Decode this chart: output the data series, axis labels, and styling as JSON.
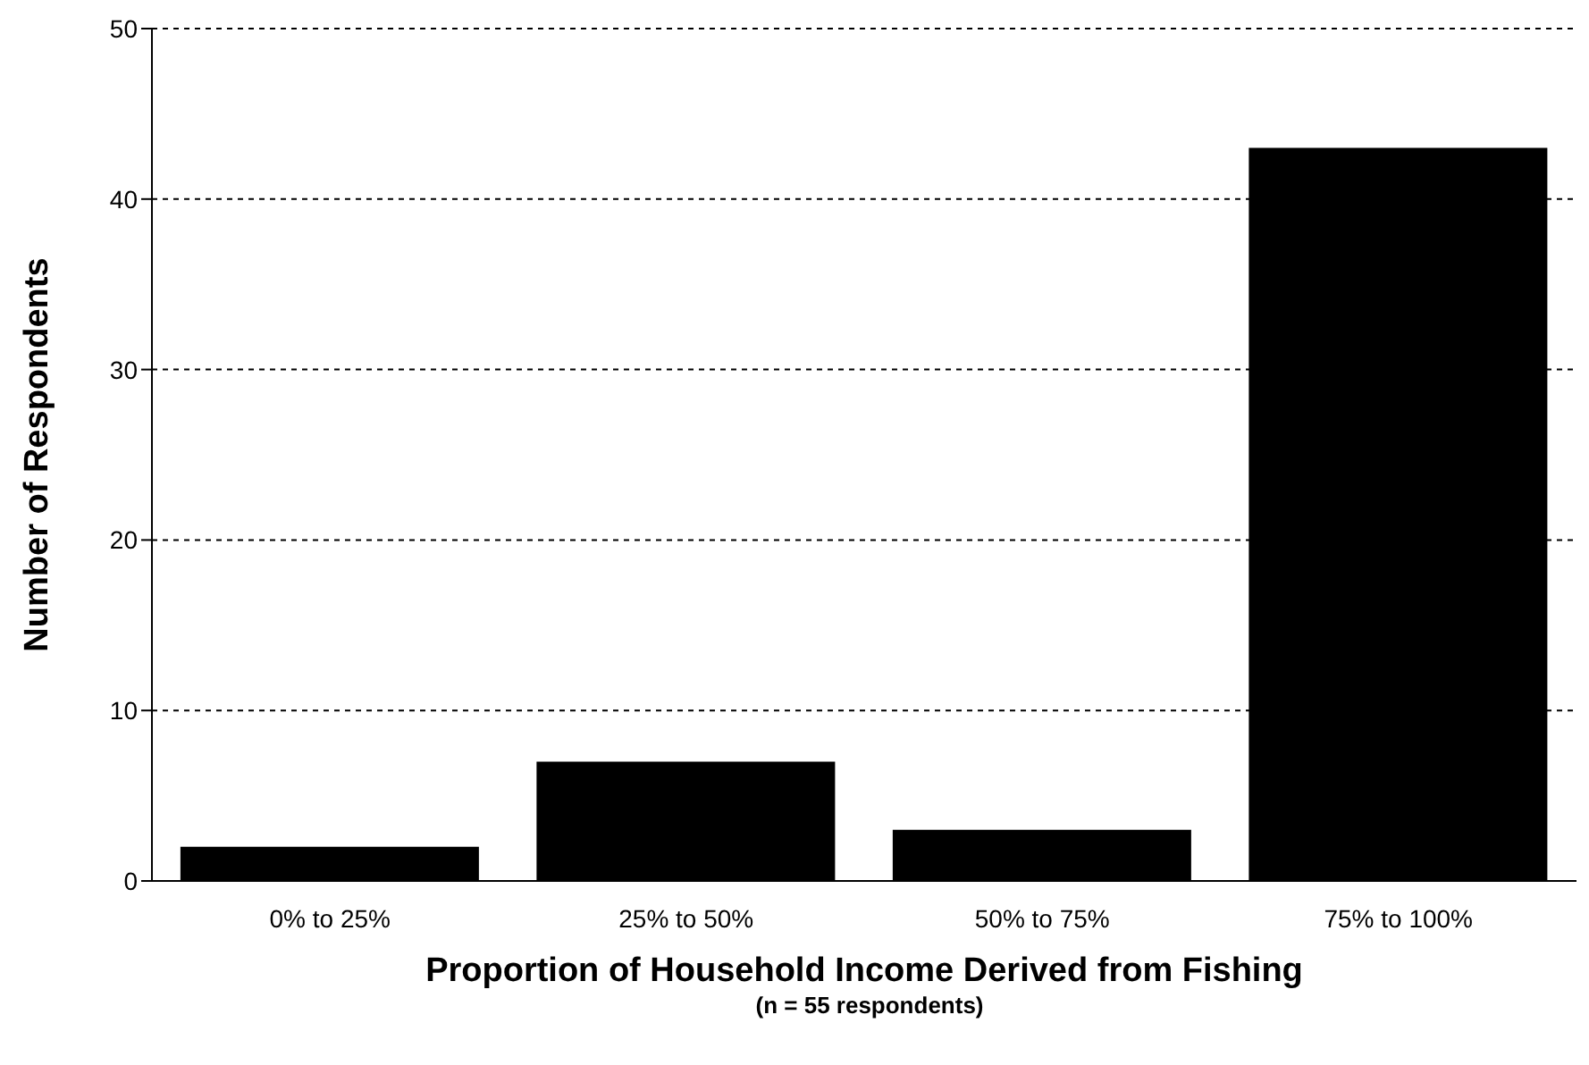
{
  "chart_data": {
    "type": "bar",
    "xlabel": "Proportion of Household Income Derived from Fishing",
    "ylabel": "Number of Respondents",
    "annotations": [
      "(n = 55 respondents)"
    ],
    "categories": [
      "0% to 25%",
      "25% to 50%",
      "50% to 75%",
      "75% to 100%"
    ],
    "values": [
      2,
      7,
      3,
      43
    ],
    "color": "#000000",
    "ylim": [
      0,
      50
    ],
    "yticks": [
      0,
      10,
      20,
      30,
      40,
      50
    ],
    "grid": "y"
  }
}
